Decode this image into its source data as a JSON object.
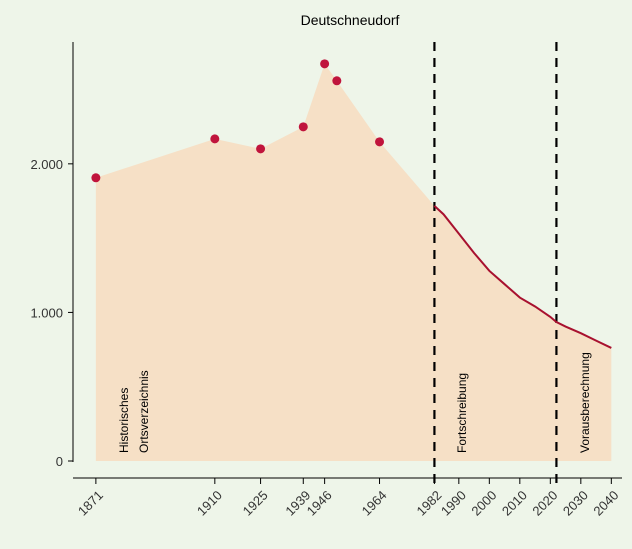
{
  "chart_data": {
    "type": "area",
    "title": "Deutschneudorf",
    "xlim": [
      1863.5,
      2043.5
    ],
    "ylim": [
      0,
      2820
    ],
    "yticks": [
      0,
      {
        "value": 1000,
        "label": "1.000"
      },
      {
        "value": 2000,
        "label": "2.000"
      }
    ],
    "xticks": [
      1871,
      1910,
      1925,
      1939,
      1946,
      1964,
      1982,
      1990,
      2000,
      2010,
      2020,
      2030,
      2040
    ],
    "series": [
      {
        "name": "Historisches Ortsverzeichnis",
        "kind": "points",
        "color": "#c0143c",
        "x": [
          1871,
          1910,
          1925,
          1939,
          1946,
          1950,
          1964
        ],
        "values": [
          1906,
          2168,
          2101,
          2249,
          2673,
          2559,
          2148
        ]
      },
      {
        "name": "Fortschreibung / Vorausberechnung",
        "kind": "line",
        "color": "#a8112f",
        "x": [
          1982,
          1985,
          1990,
          1995,
          2000,
          2005,
          2010,
          2015,
          2020,
          2022,
          2025,
          2030,
          2035,
          2040
        ],
        "values": [
          1717,
          1660,
          1530,
          1400,
          1280,
          1190,
          1100,
          1040,
          970,
          935,
          905,
          860,
          810,
          761
        ]
      }
    ],
    "area_color": "#f6e0c6",
    "vlines": [
      1982,
      2022
    ],
    "annotations": [
      "Historisches",
      "Ortsverzeichnis",
      "Fortschreibung",
      "Vorausberechnung"
    ]
  }
}
